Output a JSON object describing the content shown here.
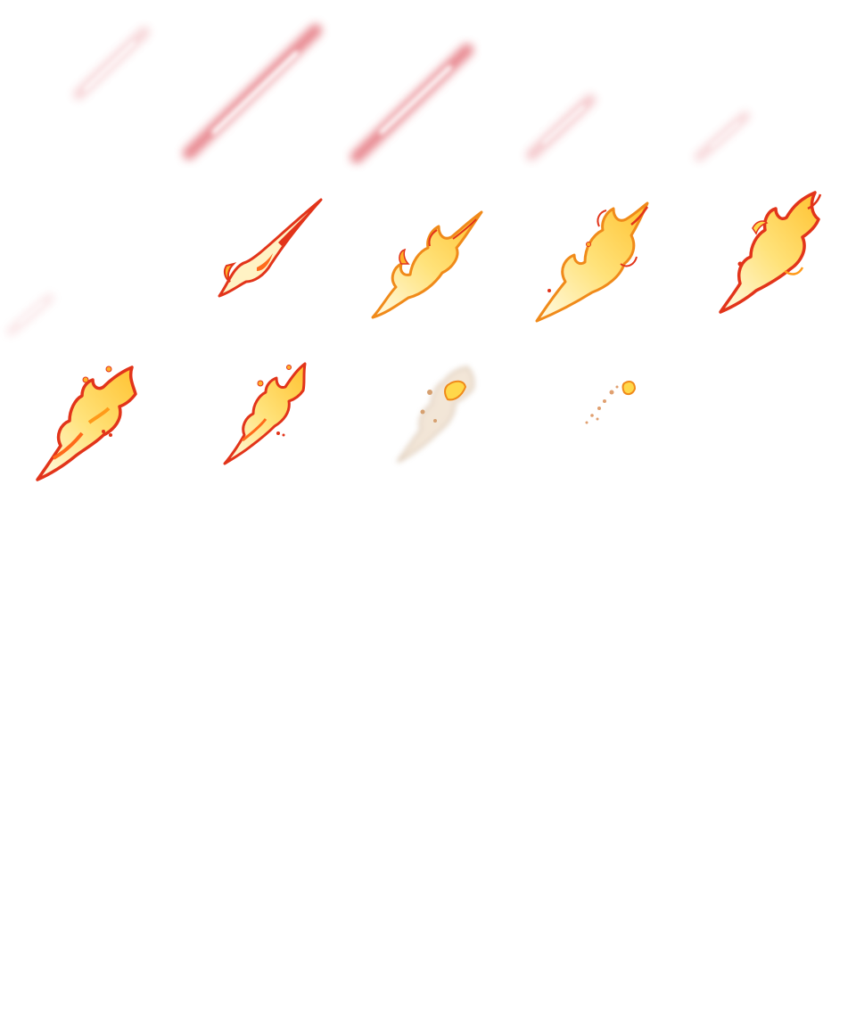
{
  "sprite_sheet": {
    "columns": 5,
    "rows": 6,
    "frames_filled": 14,
    "colors": {
      "background": "#ffffff",
      "streak_core": "#ffffff",
      "streak_glow": "#e0606a",
      "flame_core": "#fffbe6",
      "flame_mid": "#ffd84a",
      "flame_outer": "#ff9a1a",
      "flame_edge": "#e2341a",
      "smoke": "#c8a888"
    },
    "frames": [
      {
        "id": 1,
        "kind": "streak",
        "strength": 0.45
      },
      {
        "id": 2,
        "kind": "streak",
        "strength": 1.0
      },
      {
        "id": 3,
        "kind": "streak",
        "strength": 1.0
      },
      {
        "id": 4,
        "kind": "streak",
        "strength": 0.55
      },
      {
        "id": 5,
        "kind": "streak",
        "strength": 0.45
      },
      {
        "id": 6,
        "kind": "streak",
        "strength": 0.3
      },
      {
        "id": 7,
        "kind": "flame-ignite"
      },
      {
        "id": 8,
        "kind": "flame-grow"
      },
      {
        "id": 9,
        "kind": "flame-full"
      },
      {
        "id": 10,
        "kind": "flame-peak"
      },
      {
        "id": 11,
        "kind": "flame-break"
      },
      {
        "id": 12,
        "kind": "flame-fade"
      },
      {
        "id": 13,
        "kind": "smoke"
      },
      {
        "id": 14,
        "kind": "embers"
      }
    ]
  }
}
